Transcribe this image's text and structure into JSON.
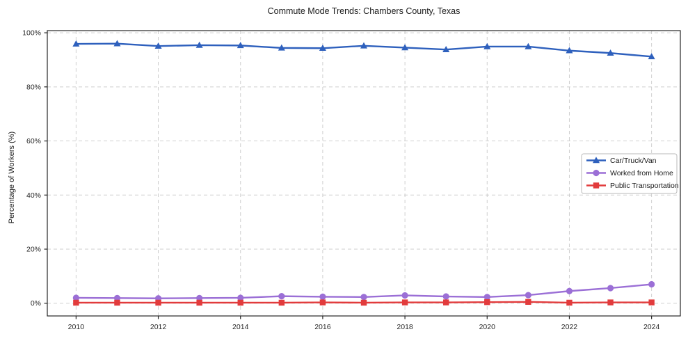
{
  "figure": {
    "title": "Commute Mode Trends: Chambers County, Texas",
    "ylabel": "Percentage of Workers (%)"
  },
  "chart_data": {
    "type": "line",
    "title": "Commute Mode Trends: Chambers County, Texas",
    "xlabel": "",
    "ylabel": "Percentage of Workers (%)",
    "x": [
      2010,
      2011,
      2012,
      2013,
      2014,
      2015,
      2016,
      2017,
      2018,
      2019,
      2020,
      2021,
      2022,
      2023,
      2024
    ],
    "series": [
      {
        "name": "Car/Truck/Van",
        "color": "#2e60bd",
        "marker": "triangle",
        "values": [
          95.9,
          96.0,
          95.1,
          95.4,
          95.3,
          94.4,
          94.3,
          95.2,
          94.5,
          93.8,
          94.9,
          94.9,
          93.4,
          92.5,
          91.2
        ]
      },
      {
        "name": "Worked from Home",
        "color": "#9b6fd6",
        "marker": "circle",
        "values": [
          2.0,
          1.9,
          1.8,
          1.9,
          2.0,
          2.6,
          2.4,
          2.3,
          2.9,
          2.5,
          2.3,
          3.0,
          4.5,
          5.6,
          7.0
        ]
      },
      {
        "name": "Public Transportation",
        "color": "#e23b3c",
        "marker": "square",
        "values": [
          0.2,
          0.2,
          0.2,
          0.2,
          0.2,
          0.2,
          0.3,
          0.2,
          0.3,
          0.3,
          0.4,
          0.5,
          0.2,
          0.3,
          0.3
        ]
      }
    ],
    "xlim": [
      2009.3,
      2024.7
    ],
    "ylim": [
      -4.7,
      100.8
    ],
    "x_ticks": [
      2010,
      2012,
      2014,
      2016,
      2018,
      2020,
      2022,
      2024
    ],
    "x_tick_labels": [
      "2010",
      "2012",
      "2014",
      "2016",
      "2018",
      "2020",
      "2022",
      "2024"
    ],
    "y_ticks": [
      0,
      20,
      40,
      60,
      80,
      100
    ],
    "y_tick_labels": [
      "0%",
      "20%",
      "40%",
      "60%",
      "80%",
      "100%"
    ],
    "grid": true,
    "grid_style": "dashed",
    "legend_position": "center-right",
    "colors": {
      "grid": "#c7c7c7",
      "spine": "#262626",
      "legend_border": "#b9b9b9",
      "legend_bg": "#ffffff"
    }
  }
}
